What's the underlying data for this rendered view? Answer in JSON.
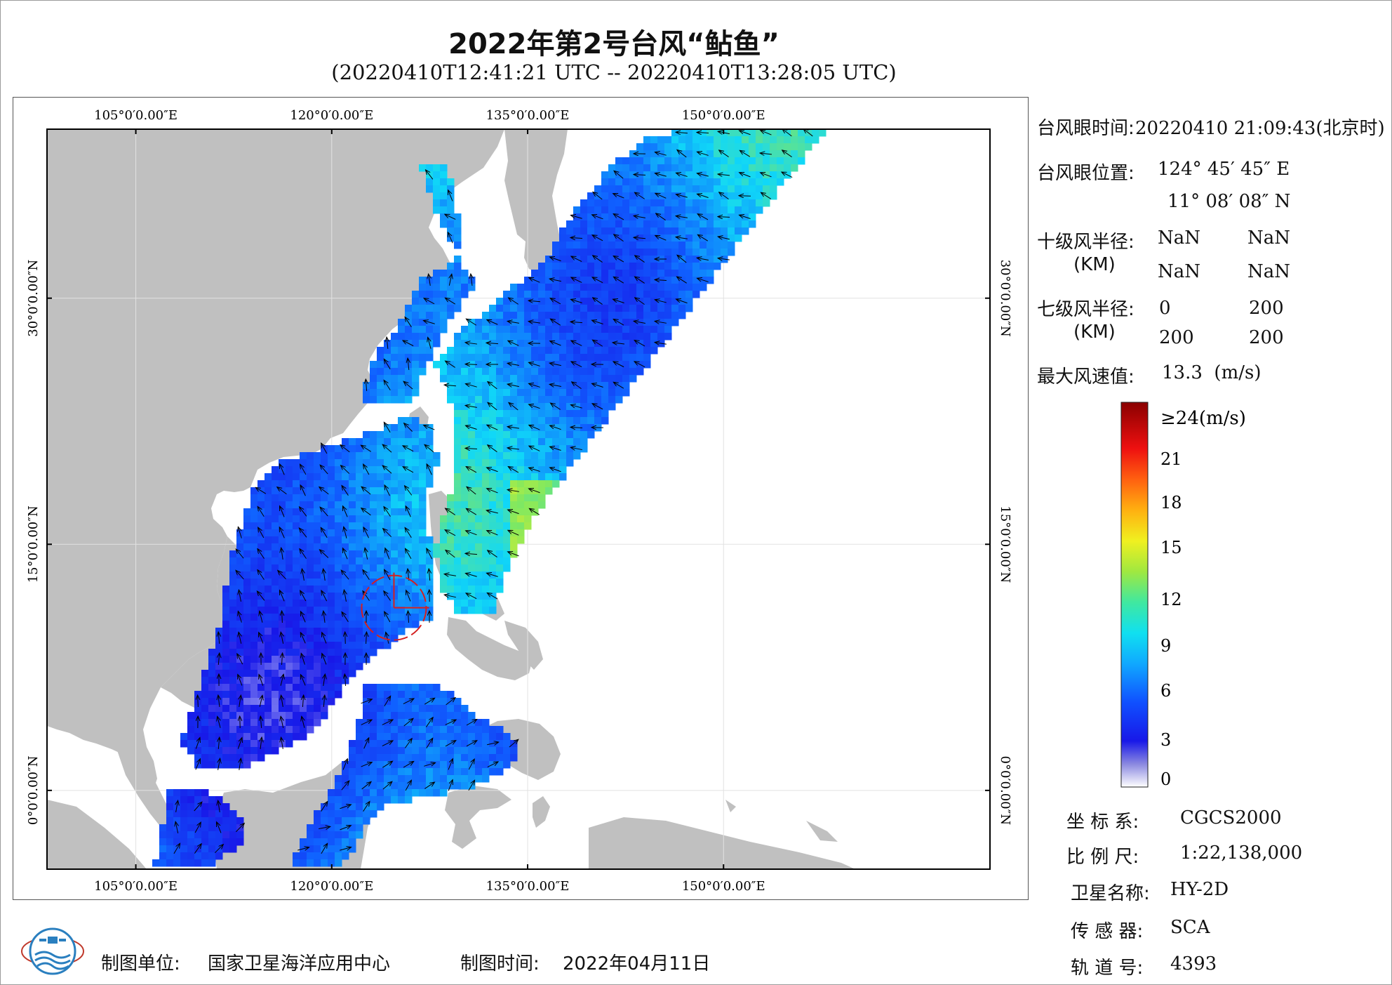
{
  "title": "2022年第2号台风“鲇鱼”",
  "subtitle": "(20220410T12:41:21 UTC -- 20220410T13:28:05 UTC)",
  "map": {
    "top_labels": [
      "105°0′0.00″E",
      "120°0′0.00″E",
      "135°0′0.00″E",
      "150°0′0.00″E"
    ],
    "bottom_labels": [
      "105°0′0.00″E",
      "120°0′0.00″E",
      "135°0′0.00″E",
      "150°0′0.00″E"
    ],
    "left_labels": [
      "30°0′0.00″N",
      "15°0′0.00″N",
      "0°0′0.00″N"
    ],
    "right_labels": [
      "30°0′0.00″N",
      "15°0′0.00″N",
      "0°0′0.00″N"
    ],
    "land_color": "#c0c0c0",
    "ocean_color": "#ffffff",
    "typhoon_marker_color": "#d42020"
  },
  "info": {
    "eye_time_label": "台风眼时间:",
    "eye_time_value": "20220410 21:09:43(北京时)",
    "eye_pos_label": "台风眼位置:",
    "eye_lon": "124° 45′ 45″ E",
    "eye_lat": "11° 08′ 08″ N",
    "r10_label": "十级风半径:",
    "r10_unit": "(KM)",
    "r10_values": [
      "NaN",
      "NaN",
      "NaN",
      "NaN"
    ],
    "r7_label": "七级风半径:",
    "r7_unit": "(KM)",
    "r7_values": [
      "0",
      "200",
      "200",
      "200"
    ],
    "max_wind_label": "最大风速值:",
    "max_wind_value": "13.3  (m/s)"
  },
  "legend": {
    "top_label": "≥24(m/s)",
    "ticks": [
      "21",
      "18",
      "15",
      "12",
      "9",
      "6",
      "3",
      "0"
    ]
  },
  "meta": {
    "crs_label": "坐 标 系:",
    "crs_value": "CGCS2000",
    "scale_label": "比 例 尺:",
    "scale_value": "1:22,138,000",
    "satellite_label": "卫星名称:",
    "satellite_value": "HY-2D",
    "sensor_label": "传 感 器:",
    "sensor_value": "SCA",
    "orbit_label": "轨 道 号:",
    "orbit_value": "4393"
  },
  "footer": {
    "unit_label": "制图单位:",
    "unit_value": "国家卫星海洋应用中心",
    "time_label": "制图时间:",
    "time_value": "2022年04月11日"
  }
}
